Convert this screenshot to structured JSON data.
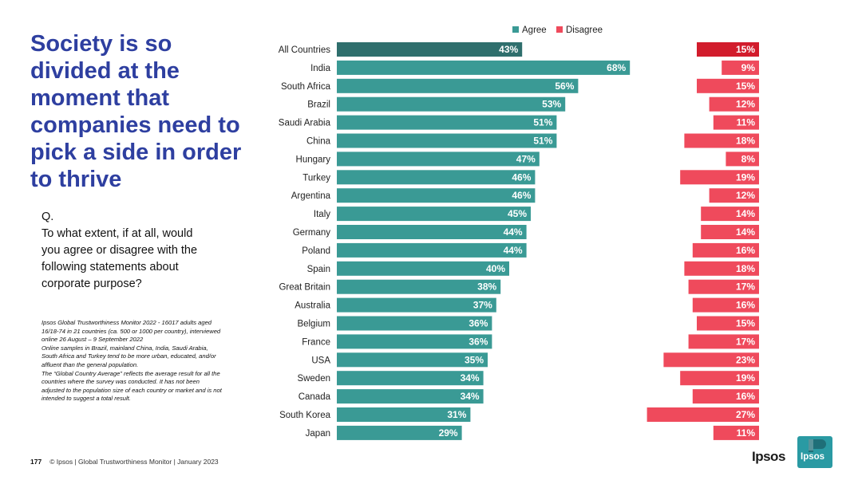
{
  "title": "Society is so divided at the moment that companies need to pick a side in order to thrive",
  "title_lines": [
    "Society is so",
    "divided at the",
    "moment that",
    "companies need to",
    "pick a side in order",
    "to thrive"
  ],
  "question_lines": [
    "Q.",
    "To what extent, if at all, would",
    "you agree or disagree with the",
    "following statements about",
    "corporate purpose?"
  ],
  "notes_lines": [
    "Ipsos Global Trustworthiness Monitor 2022 - 16017 adults aged",
    "16/18-74 in 21 countries (ca. 500 or 1000 per country), interviewed",
    "online 26 August – 9 September 2022",
    "Online samples in Brazil, mainland China, India, Saudi Arabia,",
    "South Africa and Turkey tend to be more urban, educated, and/or",
    "affluent than the general population.",
    "The “Global Country Average” reflects the average result for all the",
    "countries where the survey was conducted. It has not been",
    "adjusted to the population size of each country or market and is not",
    "intended to suggest a total result."
  ],
  "footer": {
    "page_number": "177",
    "text": "© Ipsos | Global Trustworthiness Monitor | January 2023"
  },
  "logo": {
    "text": "Ipsos",
    "box_text": "Ipsos"
  },
  "colors": {
    "agree": "#3a9a95",
    "agree_highlight": "#2f6f6d",
    "disagree": "#ef4a5c",
    "disagree_highlight": "#d21c2c",
    "title": "#2e3fa0"
  },
  "chart_data": {
    "type": "bar",
    "orientation": "horizontal",
    "legend_position": "top",
    "categories": [
      "All Countries",
      "India",
      "South Africa",
      "Brazil",
      "Saudi Arabia",
      "China",
      "Hungary",
      "Turkey",
      "Argentina",
      "Italy",
      "Germany",
      "Poland",
      "Spain",
      "Great Britain",
      "Australia",
      "Belgium",
      "France",
      "USA",
      "Sweden",
      "Canada",
      "South Korea",
      "Japan"
    ],
    "series": [
      {
        "name": "Agree",
        "values": [
          43,
          68,
          56,
          53,
          51,
          51,
          47,
          46,
          46,
          45,
          44,
          44,
          40,
          38,
          37,
          36,
          36,
          35,
          34,
          34,
          31,
          29
        ]
      },
      {
        "name": "Disagree",
        "values": [
          15,
          9,
          15,
          12,
          11,
          18,
          8,
          19,
          12,
          14,
          14,
          16,
          18,
          17,
          16,
          15,
          17,
          23,
          19,
          16,
          27,
          11
        ]
      }
    ],
    "value_suffix": "%"
  }
}
